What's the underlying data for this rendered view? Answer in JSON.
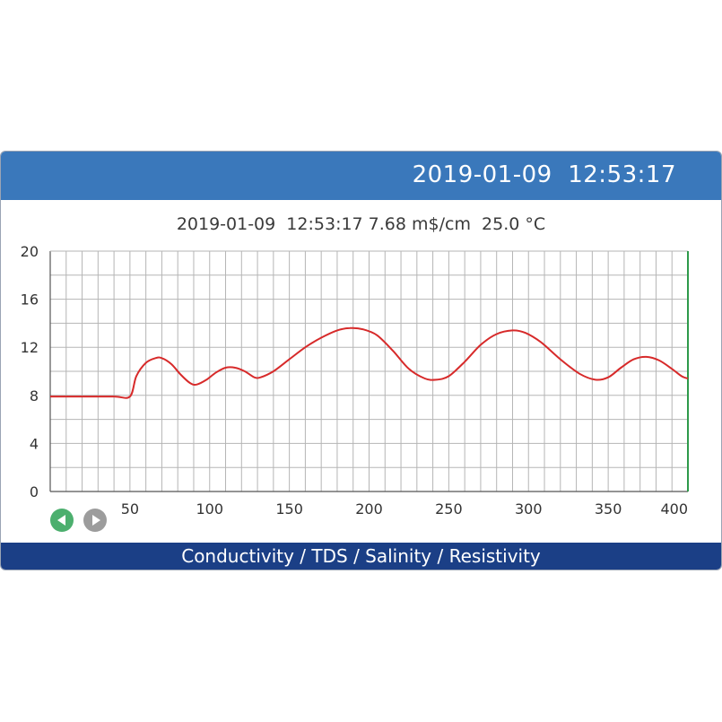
{
  "header": {
    "datetime": "2019-01-09  12:53:17"
  },
  "reading": {
    "text": "2019-01-09  12:53:17 7.68 m$/cm  25.0 °C"
  },
  "colors": {
    "header_bg": "#3a78bb",
    "footer_bg": "#1b3f86",
    "line": "#d72a2a",
    "grid": "#b5b5b5",
    "cursor": "#2e9a4a"
  },
  "navigation": {
    "prev_icon": "triangle-left-icon",
    "next_icon": "triangle-right-icon"
  },
  "footer": {
    "title": "Conductivity / TDS / Salinity / Resistivity"
  },
  "chart_data": {
    "type": "line",
    "xlim": [
      0,
      400
    ],
    "ylim": [
      0,
      20
    ],
    "x_ticks": [
      50,
      100,
      150,
      200,
      250,
      300,
      350,
      400
    ],
    "y_ticks": [
      0,
      4,
      8,
      12,
      16,
      20
    ],
    "grid": true,
    "series": [
      {
        "points": [
          [
            0,
            7.9
          ],
          [
            20,
            7.9
          ],
          [
            40,
            7.9
          ],
          [
            50,
            7.9
          ],
          [
            54,
            9.6
          ],
          [
            60,
            10.7
          ],
          [
            66,
            11.1
          ],
          [
            70,
            11.1
          ],
          [
            76,
            10.6
          ],
          [
            82,
            9.7
          ],
          [
            88,
            9.0
          ],
          [
            92,
            8.9
          ],
          [
            98,
            9.3
          ],
          [
            104,
            9.9
          ],
          [
            110,
            10.3
          ],
          [
            116,
            10.3
          ],
          [
            122,
            10.0
          ],
          [
            128,
            9.5
          ],
          [
            132,
            9.5
          ],
          [
            140,
            10.0
          ],
          [
            150,
            11.0
          ],
          [
            160,
            12.0
          ],
          [
            170,
            12.8
          ],
          [
            180,
            13.4
          ],
          [
            188,
            13.6
          ],
          [
            196,
            13.5
          ],
          [
            205,
            13.0
          ],
          [
            215,
            11.7
          ],
          [
            225,
            10.2
          ],
          [
            235,
            9.4
          ],
          [
            242,
            9.3
          ],
          [
            250,
            9.6
          ],
          [
            260,
            10.8
          ],
          [
            270,
            12.2
          ],
          [
            280,
            13.1
          ],
          [
            290,
            13.4
          ],
          [
            298,
            13.2
          ],
          [
            308,
            12.4
          ],
          [
            320,
            11.0
          ],
          [
            332,
            9.8
          ],
          [
            342,
            9.3
          ],
          [
            350,
            9.5
          ],
          [
            358,
            10.3
          ],
          [
            366,
            11.0
          ],
          [
            374,
            11.2
          ],
          [
            382,
            10.9
          ],
          [
            390,
            10.2
          ],
          [
            396,
            9.6
          ],
          [
            400,
            9.4
          ]
        ]
      }
    ]
  }
}
